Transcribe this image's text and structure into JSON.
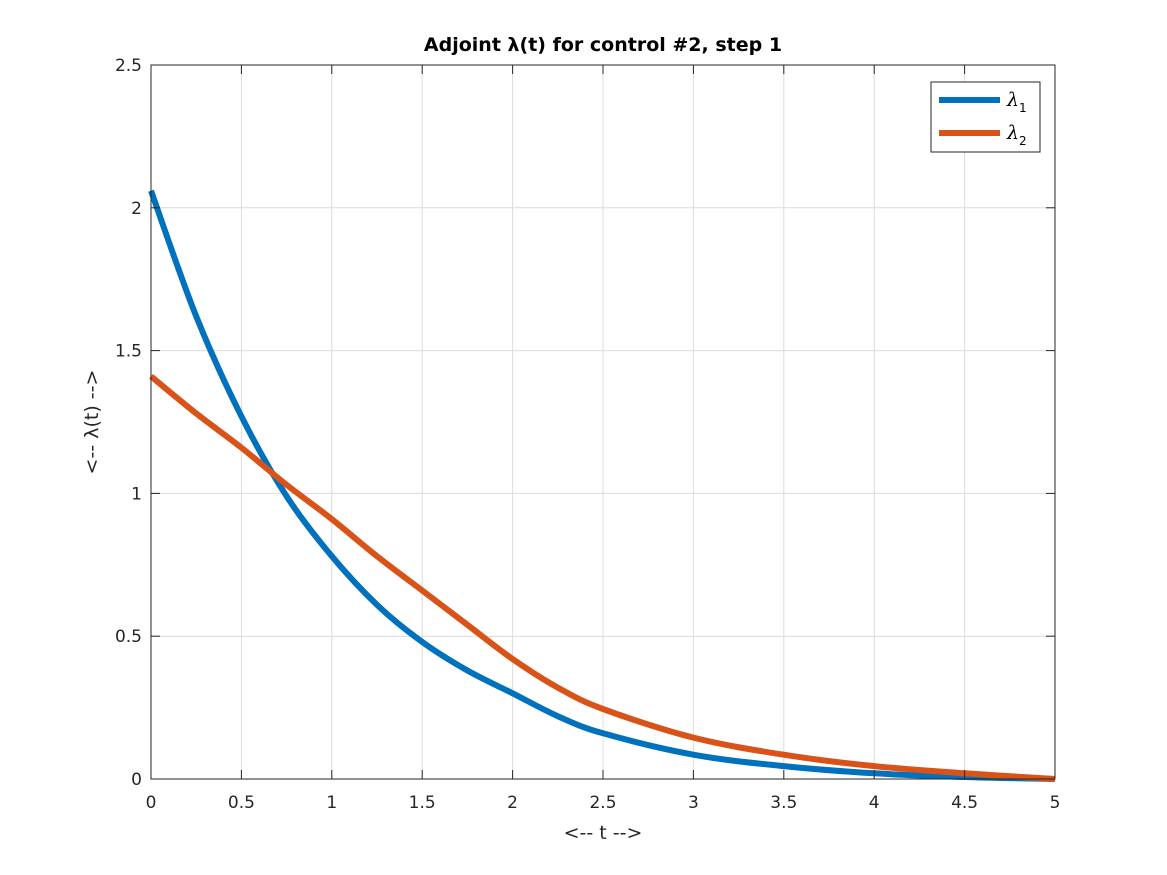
{
  "chart_data": {
    "type": "line",
    "title": "Adjoint λ(t) for control #2, step 1",
    "xlabel": "<-- t -->",
    "ylabel": "<-- λ(t) -->",
    "xlim": [
      0,
      5
    ],
    "ylim": [
      0,
      2.5
    ],
    "x_ticks": [
      "0",
      "0.5",
      "1",
      "1.5",
      "2",
      "2.5",
      "3",
      "3.5",
      "4",
      "4.5",
      "5"
    ],
    "y_ticks": [
      "0",
      "0.5",
      "1",
      "1.5",
      "2",
      "2.5"
    ],
    "grid": true,
    "legend_position": "top-right",
    "x": [
      0,
      0.25,
      0.5,
      0.75,
      1.0,
      1.25,
      1.5,
      1.75,
      2.0,
      2.25,
      2.5,
      3.0,
      3.5,
      4.0,
      4.5,
      5.0
    ],
    "series": [
      {
        "name": "λ1",
        "legend_symbol": "λ",
        "legend_subscript": "1",
        "color": "#0072BD",
        "values": [
          2.06,
          1.62,
          1.27,
          0.99,
          0.78,
          0.61,
          0.48,
          0.38,
          0.3,
          0.22,
          0.16,
          0.085,
          0.045,
          0.02,
          0.007,
          0.0
        ]
      },
      {
        "name": "λ2",
        "legend_symbol": "λ",
        "legend_subscript": "2",
        "color": "#D95319",
        "values": [
          1.41,
          1.28,
          1.16,
          1.03,
          0.91,
          0.78,
          0.66,
          0.54,
          0.42,
          0.32,
          0.245,
          0.145,
          0.085,
          0.045,
          0.02,
          0.0
        ]
      }
    ]
  }
}
